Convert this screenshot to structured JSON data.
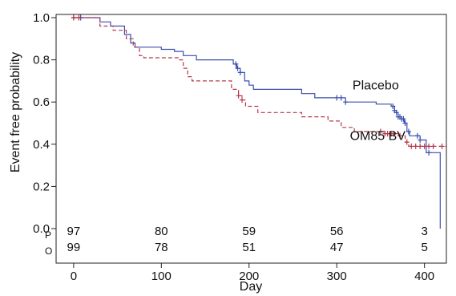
{
  "chart_data": {
    "type": "line",
    "subtype": "kaplan-meier",
    "xlabel": "Day",
    "ylabel": "Event free probability",
    "xlim": [
      -20,
      425
    ],
    "ylim": [
      0,
      1.02
    ],
    "x_ticks": [
      0,
      100,
      200,
      300,
      400
    ],
    "y_ticks": [
      0.0,
      0.2,
      0.4,
      0.6,
      0.8,
      1.0
    ],
    "y_tick_labels": [
      "0.0",
      "0.2",
      "0.4",
      "0.6",
      "0.8",
      "1.0"
    ],
    "grid": false,
    "legend": "none",
    "series": [
      {
        "name": "Placebo",
        "color": "#3a4fb0",
        "line_style": "solid",
        "label_at": [
          318,
          0.66
        ],
        "steps": [
          [
            0,
            1.0
          ],
          [
            30,
            0.98
          ],
          [
            42,
            0.96
          ],
          [
            58,
            0.92
          ],
          [
            65,
            0.88
          ],
          [
            70,
            0.86
          ],
          [
            100,
            0.85
          ],
          [
            115,
            0.84
          ],
          [
            125,
            0.82
          ],
          [
            140,
            0.8
          ],
          [
            175,
            0.8
          ],
          [
            182,
            0.78
          ],
          [
            186,
            0.76
          ],
          [
            190,
            0.74
          ],
          [
            195,
            0.7
          ],
          [
            200,
            0.68
          ],
          [
            205,
            0.66
          ],
          [
            260,
            0.64
          ],
          [
            275,
            0.62
          ],
          [
            310,
            0.6
          ],
          [
            345,
            0.59
          ],
          [
            362,
            0.58
          ],
          [
            366,
            0.56
          ],
          [
            368,
            0.55
          ],
          [
            370,
            0.53
          ],
          [
            374,
            0.52
          ],
          [
            377,
            0.5
          ],
          [
            380,
            0.46
          ],
          [
            383,
            0.44
          ],
          [
            395,
            0.42
          ],
          [
            402,
            0.36
          ],
          [
            415,
            0.36
          ],
          [
            418,
            0.0
          ]
        ],
        "censor": [
          0,
          8,
          185,
          187,
          190,
          300,
          305,
          310,
          364,
          366,
          368,
          370,
          372,
          374,
          376,
          378,
          382,
          392,
          395,
          405
        ]
      },
      {
        "name": "OM85 BV",
        "color": "#b5384a",
        "line_style": "dashed",
        "label_at": [
          315,
          0.42
        ],
        "steps": [
          [
            0,
            1.0
          ],
          [
            30,
            0.96
          ],
          [
            45,
            0.94
          ],
          [
            60,
            0.9
          ],
          [
            68,
            0.86
          ],
          [
            75,
            0.82
          ],
          [
            80,
            0.81
          ],
          [
            120,
            0.8
          ],
          [
            125,
            0.76
          ],
          [
            130,
            0.72
          ],
          [
            135,
            0.7
          ],
          [
            180,
            0.66
          ],
          [
            188,
            0.63
          ],
          [
            192,
            0.61
          ],
          [
            196,
            0.58
          ],
          [
            210,
            0.55
          ],
          [
            260,
            0.53
          ],
          [
            290,
            0.51
          ],
          [
            305,
            0.48
          ],
          [
            320,
            0.46
          ],
          [
            355,
            0.45
          ],
          [
            370,
            0.44
          ],
          [
            378,
            0.41
          ],
          [
            382,
            0.39
          ],
          [
            425,
            0.39
          ]
        ],
        "censor": [
          0,
          6,
          188,
          192,
          350,
          355,
          358,
          362,
          365,
          372,
          380,
          385,
          390,
          395,
          400,
          405,
          410,
          420
        ]
      }
    ],
    "risk_table": {
      "x": [
        0,
        100,
        200,
        300,
        400
      ],
      "rows": [
        {
          "group": "P",
          "values": [
            "97",
            "80",
            "59",
            "56",
            "3"
          ]
        },
        {
          "group": "O",
          "values": [
            "99",
            "78",
            "51",
            "47",
            "5"
          ]
        }
      ]
    }
  }
}
